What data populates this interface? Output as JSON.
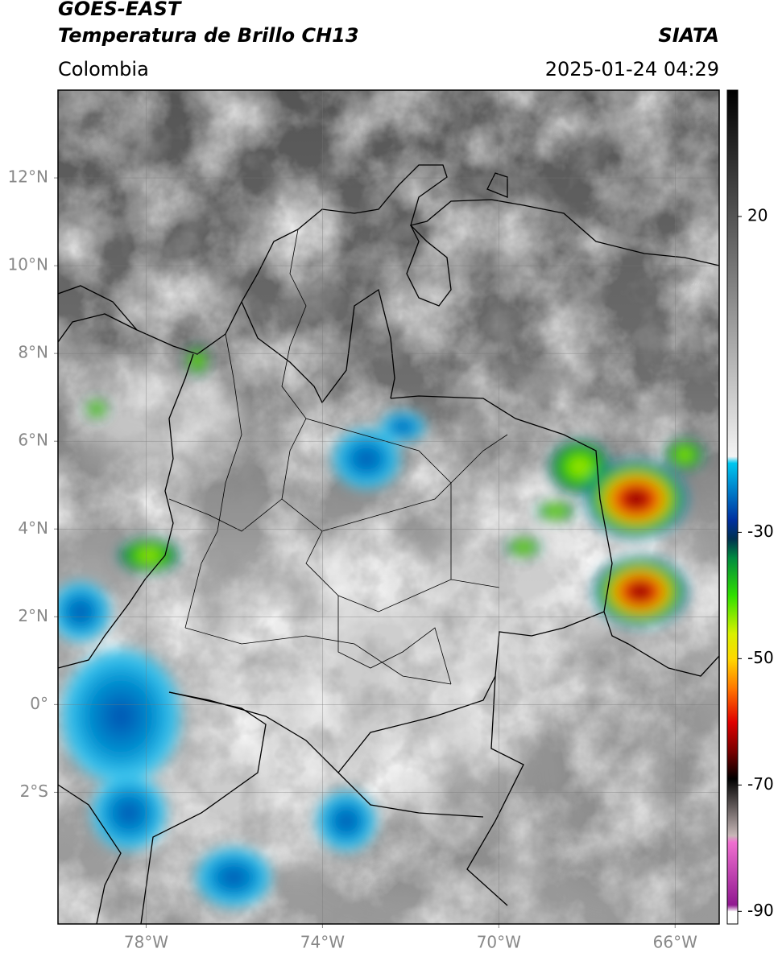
{
  "header": {
    "title": "GOES-EAST",
    "subtitle": "Temperatura de Brillo CH13",
    "source": "SIATA",
    "region": "Colombia",
    "timestamp": "2025-01-24 04:29"
  },
  "map": {
    "xlim": [
      -80,
      -65
    ],
    "ylim": [
      -5,
      14
    ],
    "xticks": [
      {
        "value": -78,
        "label": "78°W"
      },
      {
        "value": -74,
        "label": "74°W"
      },
      {
        "value": -70,
        "label": "70°W"
      },
      {
        "value": -66,
        "label": "66°W"
      }
    ],
    "yticks": [
      {
        "value": 12,
        "label": "12°N"
      },
      {
        "value": 10,
        "label": "10°N"
      },
      {
        "value": 8,
        "label": "8°N"
      },
      {
        "value": 6,
        "label": "6°N"
      },
      {
        "value": 4,
        "label": "4°N"
      },
      {
        "value": 2,
        "label": "2°N"
      },
      {
        "value": 0,
        "label": "0°"
      },
      {
        "value": -2,
        "label": "2°S"
      }
    ],
    "grid": true
  },
  "colorbar": {
    "lim": [
      -92,
      40
    ],
    "ticks": [
      20,
      -30,
      -50,
      -70,
      -90
    ],
    "colors": [
      {
        "value": 40,
        "color": "#000000"
      },
      {
        "value": -18,
        "color": "#f4f4f4"
      },
      {
        "value": -19,
        "color": "#00c8f0"
      },
      {
        "value": -28,
        "color": "#0030a0"
      },
      {
        "value": -31,
        "color": "#003050"
      },
      {
        "value": -34,
        "color": "#008a40"
      },
      {
        "value": -40,
        "color": "#30e000"
      },
      {
        "value": -46,
        "color": "#d8f000"
      },
      {
        "value": -50,
        "color": "#ffd800"
      },
      {
        "value": -55,
        "color": "#ff7000"
      },
      {
        "value": -60,
        "color": "#e00000"
      },
      {
        "value": -65,
        "color": "#700000"
      },
      {
        "value": -69,
        "color": "#000000"
      },
      {
        "value": -78,
        "color": "#c8b8b8"
      },
      {
        "value": -79,
        "color": "#f070d0"
      },
      {
        "value": -89,
        "color": "#901890"
      },
      {
        "value": -90,
        "color": "#ffffff"
      },
      {
        "value": -92,
        "color": "#ffffff"
      }
    ]
  }
}
